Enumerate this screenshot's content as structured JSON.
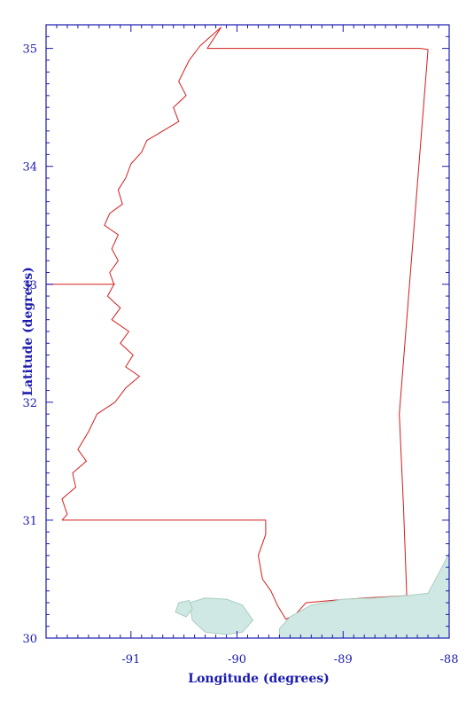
{
  "map": {
    "xlabel": "Longitude (degrees)",
    "ylabel": "Latitude (degrees)",
    "x_range": [
      -91.8,
      -88.0
    ],
    "y_range": [
      30.0,
      35.2
    ],
    "x_ticks": [
      -91,
      -90,
      -89,
      -88
    ],
    "x_tick_labels": [
      "-91",
      "-90",
      "-89",
      "-88"
    ],
    "y_ticks": [
      30,
      31,
      32,
      33,
      34,
      35
    ],
    "y_tick_labels": [
      "30",
      "31",
      "32",
      "33",
      "34",
      "35"
    ],
    "x_minor_step": 0.1,
    "y_minor_step": 0.1,
    "frame_color": "#1a1ab0",
    "boundary_color": "#d41c1c",
    "water_fill": "#cfe8e4",
    "water_edge": "#a9cdbd",
    "features": [
      {
        "name": "state-border",
        "kind": "line",
        "points": [
          [
            -91.65,
            31.0
          ],
          [
            -89.73,
            31.0
          ],
          [
            -89.73,
            30.88
          ],
          [
            -89.8,
            30.7
          ],
          [
            -89.76,
            30.5
          ],
          [
            -89.68,
            30.4
          ],
          [
            -89.62,
            30.28
          ],
          [
            -89.54,
            30.16
          ],
          [
            -89.45,
            30.2
          ],
          [
            -89.35,
            30.3
          ],
          [
            -89.1,
            30.32
          ],
          [
            -88.8,
            30.34
          ],
          [
            -88.4,
            30.36
          ],
          [
            -88.43,
            31.1
          ],
          [
            -88.47,
            31.9
          ],
          [
            -88.2,
            34.99
          ],
          [
            -88.27,
            35.0
          ],
          [
            -90.28,
            35.0
          ],
          [
            -90.15,
            35.18
          ]
        ]
      },
      {
        "name": "river-border",
        "kind": "line",
        "points": [
          [
            -90.15,
            35.18
          ],
          [
            -90.25,
            35.1
          ],
          [
            -90.35,
            35.02
          ],
          [
            -90.45,
            34.9
          ],
          [
            -90.55,
            34.72
          ],
          [
            -90.48,
            34.6
          ],
          [
            -90.6,
            34.5
          ],
          [
            -90.55,
            34.38
          ],
          [
            -90.7,
            34.3
          ],
          [
            -90.85,
            34.22
          ],
          [
            -90.9,
            34.12
          ],
          [
            -91.0,
            34.02
          ],
          [
            -91.05,
            33.9
          ],
          [
            -91.12,
            33.8
          ],
          [
            -91.08,
            33.68
          ],
          [
            -91.2,
            33.6
          ],
          [
            -91.25,
            33.5
          ],
          [
            -91.12,
            33.42
          ],
          [
            -91.18,
            33.3
          ],
          [
            -91.12,
            33.2
          ],
          [
            -91.2,
            33.1
          ],
          [
            -91.16,
            33.0
          ],
          [
            -91.22,
            32.9
          ],
          [
            -91.1,
            32.8
          ],
          [
            -91.18,
            32.7
          ],
          [
            -91.02,
            32.6
          ],
          [
            -91.1,
            32.5
          ],
          [
            -90.98,
            32.4
          ],
          [
            -91.05,
            32.3
          ],
          [
            -90.92,
            32.22
          ],
          [
            -91.05,
            32.12
          ],
          [
            -91.15,
            32.0
          ],
          [
            -91.32,
            31.9
          ],
          [
            -91.4,
            31.75
          ],
          [
            -91.5,
            31.6
          ],
          [
            -91.42,
            31.5
          ],
          [
            -91.55,
            31.4
          ],
          [
            -91.52,
            31.28
          ],
          [
            -91.65,
            31.18
          ],
          [
            -91.6,
            31.05
          ],
          [
            -91.65,
            31.0
          ]
        ]
      },
      {
        "name": "state-border-west-stub",
        "kind": "line",
        "points": [
          [
            -91.8,
            33.0
          ],
          [
            -91.15,
            33.0
          ]
        ]
      },
      {
        "name": "lake-pontchartrain",
        "kind": "water",
        "points": [
          [
            -90.45,
            30.3
          ],
          [
            -90.3,
            30.34
          ],
          [
            -90.1,
            30.33
          ],
          [
            -89.95,
            30.28
          ],
          [
            -89.85,
            30.15
          ],
          [
            -89.95,
            30.05
          ],
          [
            -90.1,
            30.03
          ],
          [
            -90.3,
            30.05
          ],
          [
            -90.42,
            30.15
          ]
        ]
      },
      {
        "name": "lake-maurepas",
        "kind": "water",
        "points": [
          [
            -90.55,
            30.3
          ],
          [
            -90.45,
            30.32
          ],
          [
            -90.42,
            30.25
          ],
          [
            -90.48,
            30.18
          ],
          [
            -90.58,
            30.22
          ]
        ]
      },
      {
        "name": "mississippi-sound",
        "kind": "water",
        "points": [
          [
            -89.6,
            30.08
          ],
          [
            -89.5,
            30.18
          ],
          [
            -89.3,
            30.28
          ],
          [
            -89.0,
            30.33
          ],
          [
            -88.7,
            30.34
          ],
          [
            -88.4,
            30.36
          ],
          [
            -88.2,
            30.38
          ],
          [
            -88.08,
            30.58
          ],
          [
            -88.0,
            30.72
          ],
          [
            -88.0,
            30.0
          ],
          [
            -89.0,
            30.0
          ],
          [
            -89.6,
            30.0
          ]
        ]
      }
    ]
  }
}
